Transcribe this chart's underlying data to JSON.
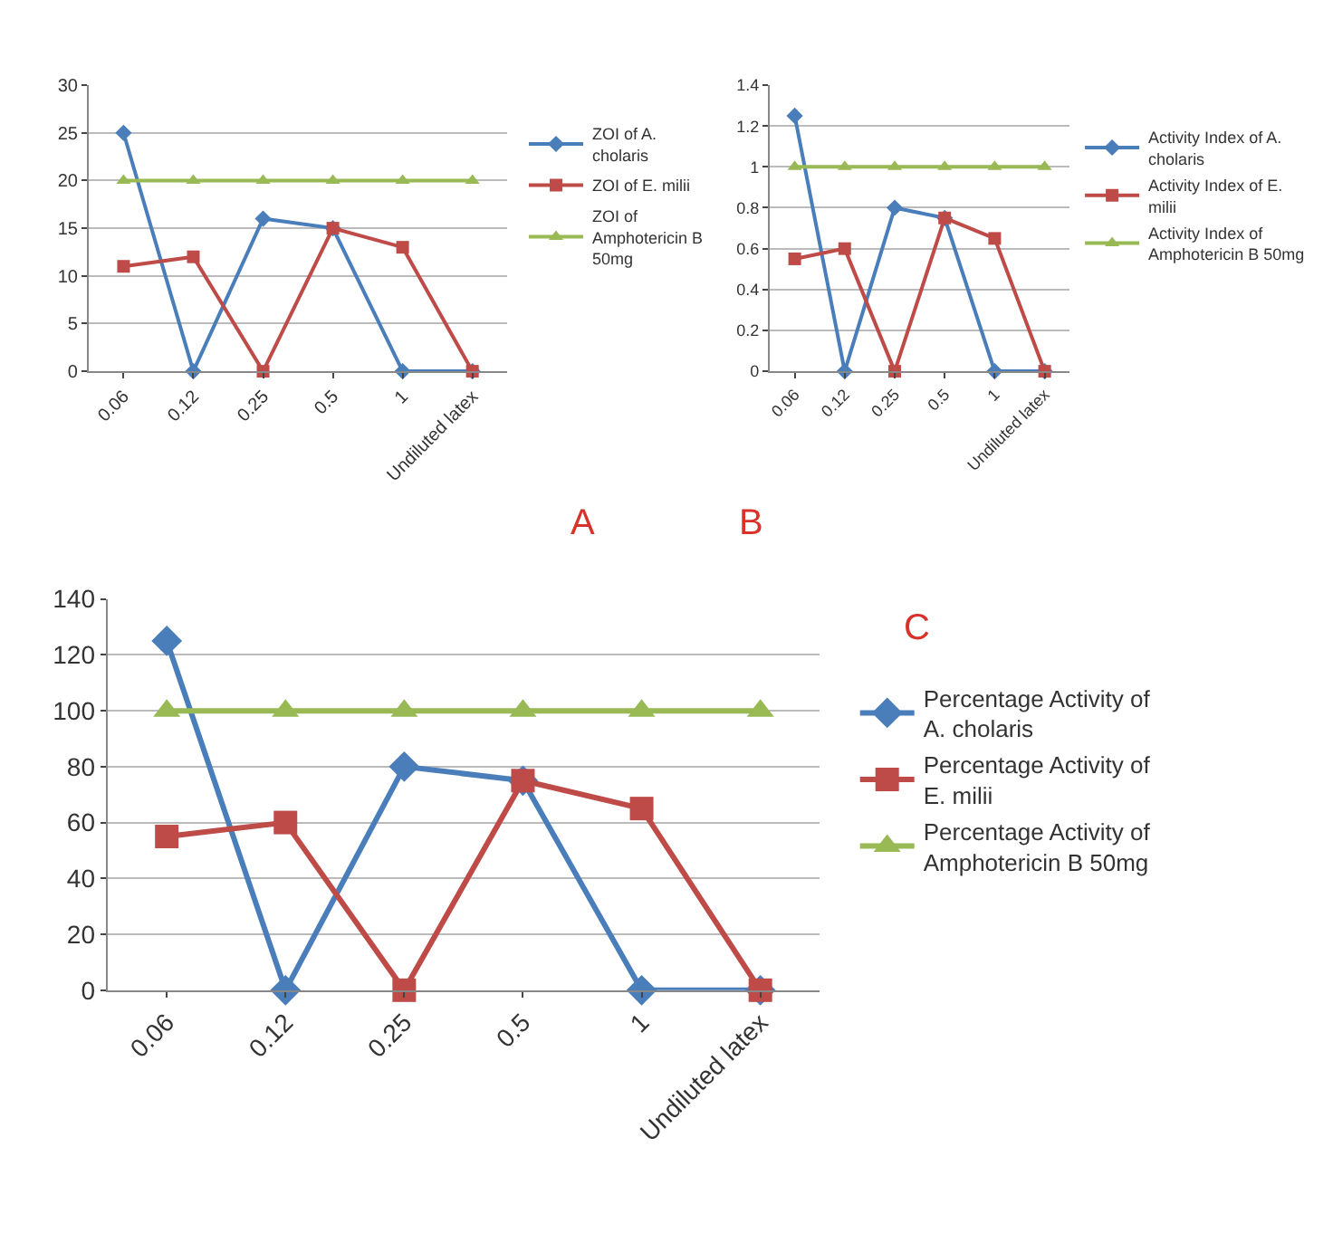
{
  "chart_data": [
    {
      "type": "line",
      "categories": [
        "0.06",
        "0.12",
        "0.25",
        "0.5",
        "1",
        "Undiluted latex"
      ],
      "ylim": [
        0,
        30
      ],
      "yticks": [
        0,
        5,
        10,
        15,
        20,
        25,
        30
      ],
      "grid": "y",
      "legend": "right",
      "annotations": [
        "A"
      ],
      "series": [
        {
          "name": "ZOI of A. cholaris",
          "color": "#4a7ebb",
          "marker": "diamond",
          "values": [
            25,
            0,
            16,
            15,
            0,
            0
          ]
        },
        {
          "name": "ZOI of E. milii",
          "color": "#be4b48",
          "marker": "square",
          "values": [
            11,
            12,
            0,
            15,
            13,
            0
          ]
        },
        {
          "name": "ZOI of Amphotericin B 50mg",
          "color": "#98b954",
          "marker": "triangle",
          "values": [
            20,
            20,
            20,
            20,
            20,
            20
          ]
        }
      ]
    },
    {
      "type": "line",
      "categories": [
        "0.06",
        "0.12",
        "0.25",
        "0.5",
        "1",
        "Undiluted latex"
      ],
      "ylim": [
        0,
        1.4
      ],
      "yticks": [
        0,
        0.2,
        0.4,
        0.6,
        0.8,
        1,
        1.2,
        1.4
      ],
      "grid": "y",
      "legend": "right",
      "annotations": [
        "B"
      ],
      "series": [
        {
          "name": "Activity Index of A. cholaris",
          "color": "#4a7ebb",
          "marker": "diamond",
          "values": [
            1.25,
            0,
            0.8,
            0.75,
            0,
            0
          ]
        },
        {
          "name": "Activity Index of E. milii",
          "color": "#be4b48",
          "marker": "square",
          "values": [
            0.55,
            0.6,
            0,
            0.75,
            0.65,
            0
          ]
        },
        {
          "name": "Activity Index of Amphotericin B 50mg",
          "color": "#98b954",
          "marker": "triangle",
          "values": [
            1,
            1,
            1,
            1,
            1,
            1
          ]
        }
      ]
    },
    {
      "type": "line",
      "categories": [
        "0.06",
        "0.12",
        "0.25",
        "0.5",
        "1",
        "Undiluted latex"
      ],
      "ylim": [
        0,
        140
      ],
      "yticks": [
        0,
        20,
        40,
        60,
        80,
        100,
        120,
        140
      ],
      "grid": "y",
      "legend": "right",
      "annotations": [
        "C"
      ],
      "series": [
        {
          "name": "Percentage Activity of A. cholaris",
          "color": "#4a7ebb",
          "marker": "diamond",
          "values": [
            125,
            0,
            80,
            75,
            0,
            0
          ]
        },
        {
          "name": "Percentage Activity of E. milii",
          "color": "#be4b48",
          "marker": "square",
          "values": [
            55,
            60,
            0,
            75,
            65,
            0
          ]
        },
        {
          "name": "Percentage Activity of Amphotericin B 50mg",
          "color": "#98b954",
          "marker": "triangle",
          "values": [
            100,
            100,
            100,
            100,
            100,
            100
          ]
        }
      ]
    }
  ]
}
